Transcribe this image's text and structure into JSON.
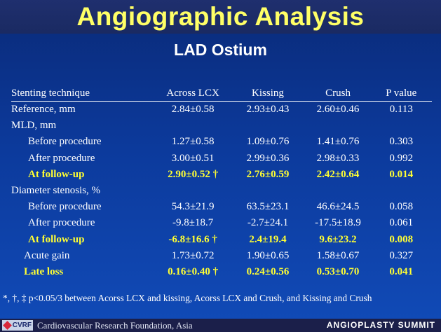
{
  "slide": {
    "title": "Angiographic Analysis",
    "subtitle": "LAD Ostium"
  },
  "table": {
    "headers": [
      "Stenting technique",
      "Across LCX",
      "Kissing",
      "Crush",
      "P value"
    ],
    "rows": [
      {
        "label": "Reference, mm",
        "v": [
          "2.84±0.58",
          "2.93±0.43",
          "2.60±0.46",
          "0.113"
        ]
      },
      {
        "label": "MLD, mm",
        "v": [
          "",
          "",
          "",
          ""
        ]
      },
      {
        "label": "Before procedure",
        "v": [
          "1.27±0.58",
          "1.09±0.76",
          "1.41±0.76",
          "0.303"
        ]
      },
      {
        "label": "After procedure",
        "v": [
          "3.00±0.51",
          "2.99±0.36",
          "2.98±0.33",
          "0.992"
        ]
      },
      {
        "label": "At follow-up",
        "v": [
          "2.90±0.52 †",
          "2.76±0.59",
          "2.42±0.64",
          "0.014"
        ]
      },
      {
        "label": "Diameter stenosis, %",
        "v": [
          "",
          "",
          "",
          ""
        ]
      },
      {
        "label": "Before procedure",
        "v": [
          "54.3±21.9",
          "63.5±23.1",
          "46.6±24.5",
          "0.058"
        ]
      },
      {
        "label": "After procedure",
        "v": [
          "-9.8±18.7",
          "-2.7±24.1",
          "-17.5±18.9",
          "0.061"
        ]
      },
      {
        "label": "At follow-up",
        "v": [
          "-6.8±16.6 †",
          "2.4±19.4",
          "9.6±23.2",
          "0.008"
        ]
      },
      {
        "label": "Acute gain",
        "v": [
          "1.73±0.72",
          "1.90±0.65",
          "1.58±0.67",
          "0.327"
        ]
      },
      {
        "label": "Late loss",
        "v": [
          "0.16±0.40 †",
          "0.24±0.56",
          "0.53±0.70",
          "0.041"
        ]
      }
    ]
  },
  "footnote": "*, †, ‡ p<0.05/3 between Acorss LCX and kissing, Acorss LCX and Crush, and Kissing and Crush",
  "footer": {
    "logo_text": "CVRF",
    "organization": "Cardiovascular Research Foundation, Asia",
    "event": "ANGIOPLASTY SUMMIT"
  },
  "colors": {
    "title": "#ffff66",
    "highlight": "#ffff33",
    "background": "#0c3a9c"
  }
}
